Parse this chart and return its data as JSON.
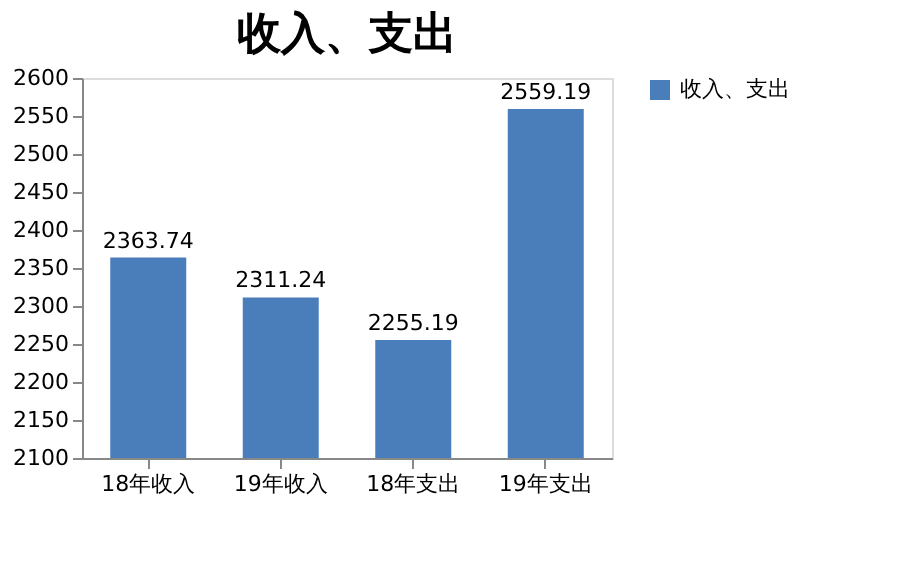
{
  "chart_data": {
    "type": "bar",
    "title": "收入、支出",
    "categories": [
      "18年收入",
      "19年收入",
      "18年支出",
      "19年支出"
    ],
    "series": [
      {
        "name": "收入、支出",
        "color": "#4a7ebb",
        "values": [
          2363.74,
          2311.24,
          2255.19,
          2559.19
        ]
      }
    ],
    "ylim": [
      2100,
      2600
    ],
    "yticks": [
      2100,
      2150,
      2200,
      2250,
      2300,
      2350,
      2400,
      2450,
      2500,
      2550,
      2600
    ],
    "data_labels": true,
    "grid": false,
    "legend": "right"
  }
}
